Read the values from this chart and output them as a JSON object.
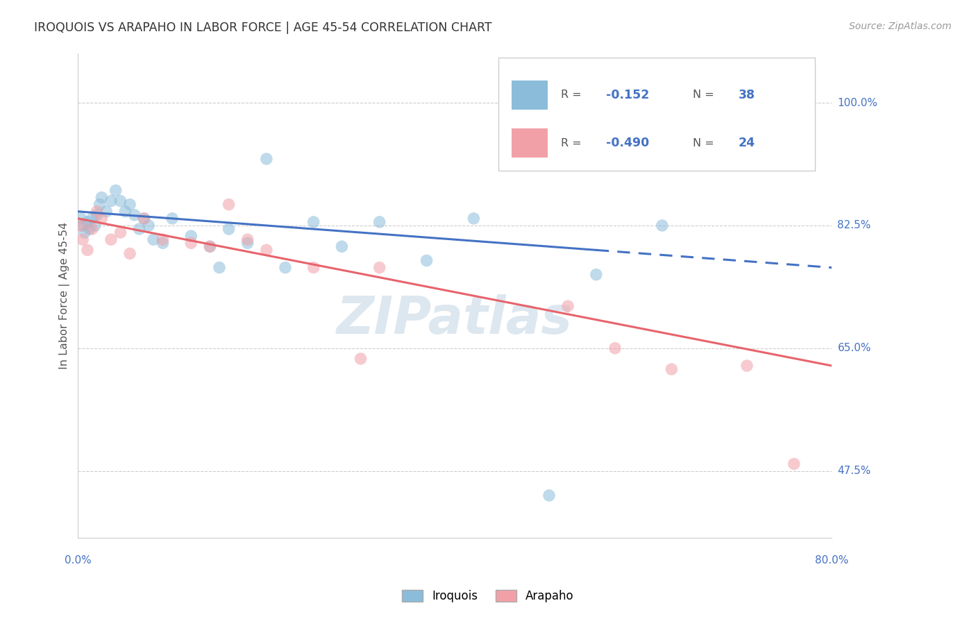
{
  "title": "IROQUOIS VS ARAPAHO IN LABOR FORCE | AGE 45-54 CORRELATION CHART",
  "source": "Source: ZipAtlas.com",
  "ylabel": "In Labor Force | Age 45-54",
  "y_ticks": [
    47.5,
    65.0,
    82.5,
    100.0
  ],
  "x_range": [
    0.0,
    80.0
  ],
  "y_range": [
    38.0,
    107.0
  ],
  "legend_label1": "Iroquois",
  "legend_label2": "Arapaho",
  "R1": "-0.152",
  "N1": "38",
  "R2": "-0.490",
  "N2": "24",
  "color_blue": "#8BBCDA",
  "color_pink": "#F2A0A8",
  "color_blue_line": "#4472C4",
  "color_pink_line": "#E8636B",
  "color_text_blue": "#4472C4",
  "watermark": "ZIPatlas",
  "iroquois_x": [
    0.3,
    0.5,
    0.7,
    1.0,
    1.2,
    1.5,
    1.8,
    2.0,
    2.3,
    2.5,
    3.0,
    3.5,
    4.0,
    4.5,
    5.0,
    5.5,
    6.0,
    6.5,
    7.0,
    7.5,
    8.0,
    9.0,
    10.0,
    12.0,
    14.0,
    15.0,
    16.0,
    18.0,
    20.0,
    22.0,
    25.0,
    28.0,
    32.0,
    37.0,
    42.0,
    50.0,
    55.0,
    62.0
  ],
  "iroquois_y": [
    83.5,
    82.5,
    81.5,
    83.0,
    82.0,
    83.5,
    82.5,
    84.0,
    85.5,
    86.5,
    84.5,
    86.0,
    87.5,
    86.0,
    84.5,
    85.5,
    84.0,
    82.0,
    83.5,
    82.5,
    80.5,
    80.0,
    83.5,
    81.0,
    79.5,
    76.5,
    82.0,
    80.0,
    92.0,
    76.5,
    83.0,
    79.5,
    83.0,
    77.5,
    83.5,
    44.0,
    75.5,
    82.5
  ],
  "arapaho_x": [
    0.3,
    0.5,
    1.0,
    1.5,
    2.0,
    2.5,
    3.5,
    4.5,
    5.5,
    7.0,
    9.0,
    12.0,
    14.0,
    16.0,
    18.0,
    20.0,
    25.0,
    30.0,
    32.0,
    52.0,
    57.0,
    63.0,
    71.0,
    76.0
  ],
  "arapaho_y": [
    82.5,
    80.5,
    79.0,
    82.0,
    84.5,
    83.5,
    80.5,
    81.5,
    78.5,
    83.5,
    80.5,
    80.0,
    79.5,
    85.5,
    80.5,
    79.0,
    76.5,
    63.5,
    76.5,
    71.0,
    65.0,
    62.0,
    62.5,
    48.5
  ],
  "blue_line_x0": 0.0,
  "blue_line_y0": 84.5,
  "blue_line_x1": 80.0,
  "blue_line_y1": 76.5,
  "blue_solid_end": 55.0,
  "pink_line_x0": 0.0,
  "pink_line_y0": 83.5,
  "pink_line_x1": 80.0,
  "pink_line_y1": 62.5
}
